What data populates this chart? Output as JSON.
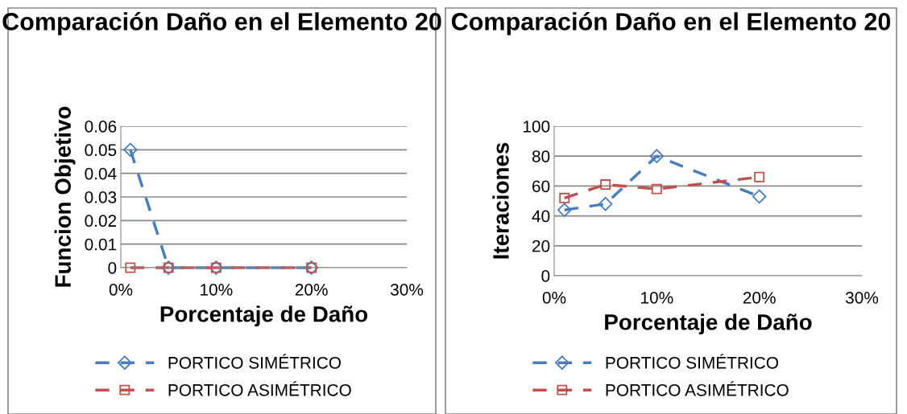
{
  "chart_data": [
    {
      "type": "line",
      "title": "Comparación Daño en el Elemento 20",
      "xlabel": "Porcentaje de Daño",
      "ylabel": "Funcion Objetivo",
      "x": [
        0.01,
        0.05,
        0.1,
        0.2
      ],
      "series": [
        {
          "name": "PORTICO SIMÉTRICO",
          "color": "#4a7ebb",
          "marker": "diamond",
          "values": [
            0.05,
            0,
            0,
            0
          ]
        },
        {
          "name": "PORTICO ASIMÉTRICO",
          "color": "#c0504d",
          "marker": "square",
          "values": [
            0,
            0,
            0,
            0
          ]
        }
      ],
      "xlim": [
        0,
        0.3
      ],
      "xticks": [
        {
          "value": 0,
          "label": "0%"
        },
        {
          "value": 0.1,
          "label": "10%"
        },
        {
          "value": 0.2,
          "label": "20%"
        },
        {
          "value": 0.3,
          "label": "30%"
        }
      ],
      "ylim": [
        0,
        0.06
      ],
      "yticks": [
        0,
        0.01,
        0.02,
        0.03,
        0.04,
        0.05,
        0.06
      ],
      "grid": "y",
      "legend": "bottom",
      "line_style": "dashed"
    },
    {
      "type": "line",
      "title": "Comparación Daño en el Elemento 20",
      "xlabel": "Porcentaje de Daño",
      "ylabel": "Iteraciones",
      "x": [
        0.01,
        0.05,
        0.1,
        0.2
      ],
      "series": [
        {
          "name": "PORTICO SIMÉTRICO",
          "color": "#4a7ebb",
          "marker": "diamond",
          "values": [
            44,
            48,
            80,
            53
          ]
        },
        {
          "name": "PORTICO ASIMÉTRICO",
          "color": "#c0504d",
          "marker": "square",
          "values": [
            52,
            61,
            58,
            66
          ]
        }
      ],
      "xlim": [
        0,
        0.3
      ],
      "xticks": [
        {
          "value": 0,
          "label": "0%"
        },
        {
          "value": 0.1,
          "label": "10%"
        },
        {
          "value": 0.2,
          "label": "20%"
        },
        {
          "value": 0.3,
          "label": "30%"
        }
      ],
      "ylim": [
        0,
        100
      ],
      "yticks": [
        0,
        20,
        40,
        60,
        80,
        100
      ],
      "grid": "y",
      "legend": "bottom",
      "line_style": "dashed"
    }
  ]
}
